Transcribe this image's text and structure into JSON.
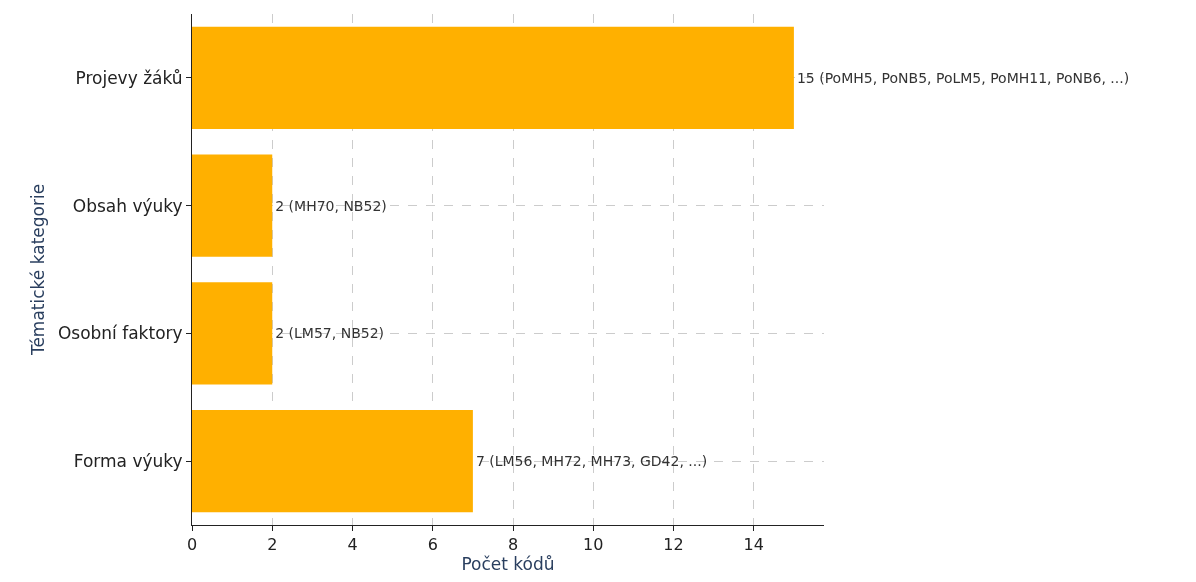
{
  "chart_data": {
    "type": "bar",
    "orientation": "horizontal",
    "categories": [
      "Projevy žáků",
      "Obsah výuky",
      "Osobní faktory",
      "Forma výuky"
    ],
    "values": [
      15,
      2,
      2,
      7
    ],
    "value_labels": [
      "15 (PoMH5, PoNB5, PoLM5, PoMH11, PoNB6, ...)",
      "2 (MH70, NB52)",
      "2 (LM57, NB52)",
      "7 (LM56, MH72, MH73, GD42, ...)"
    ],
    "color": "#ffb000",
    "xlabel": "Počet kódů",
    "ylabel": "Tématické kategorie",
    "xlim": [
      0,
      15.75
    ],
    "xticks": [
      0,
      2,
      4,
      6,
      8,
      10,
      12,
      14
    ],
    "grid": true,
    "legend": false
  }
}
